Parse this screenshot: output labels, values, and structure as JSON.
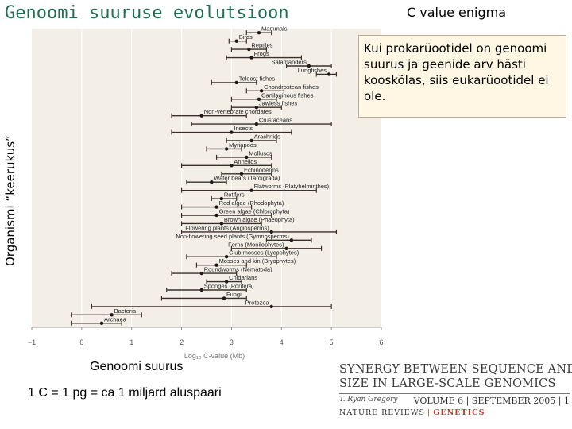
{
  "slide": {
    "title": "Genoomi suuruse evolutsioon",
    "corner_title": "C value enigma",
    "ylabel": "Organismi “keerukus”",
    "note": "Kui prokarüootidel on genoomi suurus ja geenide arv hästi kooskõlas, siis eukarüootidel ei ole.",
    "xlabel_overlay": "Genoomi suurus",
    "definition": "1 C  = 1 pg = ca 1 miljard aluspaari",
    "publication": {
      "headline_1": "SYNERGY BETWEEN SEQUENCE AND",
      "headline_2": "SIZE IN LARGE-SCALE GENOMICS",
      "author": "T. Ryan Gregory",
      "issue": "VOLUME 6 | SEPTEMBER 2005 |",
      "page": "1",
      "journal": "NATURE REVIEWS",
      "journal_section": "GENETICS"
    }
  },
  "chart_data": {
    "type": "range",
    "xlabel": "Log₁₀ C-value (Mb)",
    "xlim": [
      -1,
      6
    ],
    "xticks": [
      -1,
      0,
      1,
      2,
      3,
      4,
      5,
      6
    ],
    "grid": "vertical",
    "rows": [
      {
        "label": "Mammals",
        "min": 3.3,
        "max": 3.8,
        "mean": 3.55
      },
      {
        "label": "Birds",
        "min": 2.95,
        "max": 3.3,
        "mean": 3.1
      },
      {
        "label": "Reptiles",
        "min": 3.0,
        "max": 3.7,
        "mean": 3.35
      },
      {
        "label": "Frogs",
        "min": 2.9,
        "max": 4.4,
        "mean": 3.4
      },
      {
        "label": "Salamanders",
        "min": 4.1,
        "max": 5.0,
        "mean": 4.55
      },
      {
        "label": "Lungfishes",
        "min": 4.7,
        "max": 5.1,
        "mean": 4.95
      },
      {
        "label": "Teleost fishes",
        "min": 2.6,
        "max": 3.5,
        "mean": 3.1
      },
      {
        "label": "Chondrostean fishes",
        "min": 3.3,
        "max": 4.05,
        "mean": 3.6
      },
      {
        "label": "Cartilaginous fishes",
        "min": 3.0,
        "max": 3.9,
        "mean": 3.55
      },
      {
        "label": "Jawless fishes",
        "min": 3.0,
        "max": 4.0,
        "mean": 3.5
      },
      {
        "label": "Non-vertebrate chordates",
        "min": 1.8,
        "max": 3.3,
        "mean": 2.4
      },
      {
        "label": "Crustaceans",
        "min": 2.2,
        "max": 5.0,
        "mean": 3.5
      },
      {
        "label": "Insects",
        "min": 1.8,
        "max": 4.2,
        "mean": 3.0
      },
      {
        "label": "Arachnids",
        "min": 2.9,
        "max": 3.9,
        "mean": 3.4
      },
      {
        "label": "Myriapods",
        "min": 2.5,
        "max": 3.2,
        "mean": 2.9
      },
      {
        "label": "Molluscs",
        "min": 2.7,
        "max": 3.8,
        "mean": 3.3
      },
      {
        "label": "Annelids",
        "min": 2.0,
        "max": 3.8,
        "mean": 3.0
      },
      {
        "label": "Echinoderms",
        "min": 2.8,
        "max": 3.8,
        "mean": 3.2
      },
      {
        "label": "Water bears (Tardigrada)",
        "min": 2.1,
        "max": 2.9,
        "mean": 2.6
      },
      {
        "label": "Flatworms (Platyhelminthes)",
        "min": 2.0,
        "max": 4.7,
        "mean": 3.4
      },
      {
        "label": "Rotifers",
        "min": 2.6,
        "max": 3.1,
        "mean": 2.8
      },
      {
        "label": "Red algae (Rhodophyta)",
        "min": 2.0,
        "max": 3.4,
        "mean": 2.7
      },
      {
        "label": "Green algae (Chlorophyta)",
        "min": 2.0,
        "max": 3.8,
        "mean": 2.7
      },
      {
        "label": "Brown algae (Phaeophyta)",
        "min": 2.0,
        "max": 3.6,
        "mean": 2.8
      },
      {
        "label": "Flowering plants (Angiosperms)",
        "min": 2.0,
        "max": 5.1,
        "mean": 3.8
      },
      {
        "label": "Non-flowering seed plants (Gymnosperms)",
        "min": 3.7,
        "max": 4.6,
        "mean": 4.2
      },
      {
        "label": "Ferns (Monilophytes)",
        "min": 3.0,
        "max": 4.8,
        "mean": 4.1
      },
      {
        "label": "Club mosses (Lycophytes)",
        "min": 2.1,
        "max": 3.9,
        "mean": 2.9
      },
      {
        "label": "Mosses and kin (Bryophytes)",
        "min": 2.3,
        "max": 3.3,
        "mean": 2.7
      },
      {
        "label": "Roundworms (Nematoda)",
        "min": 1.8,
        "max": 3.1,
        "mean": 2.4
      },
      {
        "label": "Cnidarians",
        "min": 2.5,
        "max": 3.2,
        "mean": 2.9
      },
      {
        "label": "Sponges (Porifera)",
        "min": 1.7,
        "max": 3.3,
        "mean": 2.4
      },
      {
        "label": "Fungi",
        "min": 1.6,
        "max": 3.3,
        "mean": 2.85
      },
      {
        "label": "Protozoa",
        "min": 0.2,
        "max": 5.0,
        "mean": 3.8
      },
      {
        "label": "Bacteria",
        "min": -0.2,
        "max": 1.2,
        "mean": 0.6
      },
      {
        "label": "Archaea",
        "min": -0.2,
        "max": 0.8,
        "mean": 0.4
      }
    ]
  }
}
